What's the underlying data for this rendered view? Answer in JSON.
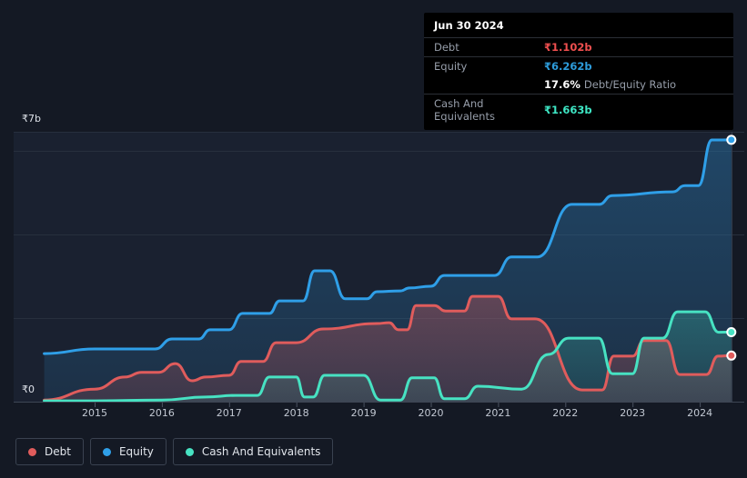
{
  "tooltip": {
    "date": "Jun 30 2024",
    "debt_label": "Debt",
    "debt_value": "₹1.102b",
    "equity_label": "Equity",
    "equity_value": "₹6.262b",
    "ratio_percent": "17.6%",
    "ratio_label": "Debt/Equity Ratio",
    "cash_label": "Cash And Equivalents",
    "cash_value": "₹1.663b"
  },
  "y_axis": {
    "max_label": "₹7b",
    "min_label": "₹0"
  },
  "x_axis": {
    "years": [
      "2015",
      "2016",
      "2017",
      "2018",
      "2019",
      "2020",
      "2021",
      "2022",
      "2023",
      "2024"
    ]
  },
  "legend": {
    "items": [
      {
        "label": "Debt",
        "color": "#e05c5c"
      },
      {
        "label": "Equity",
        "color": "#2f9fe8"
      },
      {
        "label": "Cash And Equivalents",
        "color": "#47e2c2"
      }
    ]
  },
  "colors": {
    "background": "#141924",
    "plot_background": "#1a2130",
    "gridline": "#272f3d",
    "axis_line": "#3e4654",
    "debt": "#e05c5c",
    "equity": "#2f9fe8",
    "cash": "#47e2c2"
  },
  "chart_data": {
    "type": "area",
    "title": "Debt, Equity and Cash history (₹ billions)",
    "x_range": [
      2014.25,
      2024.47
    ],
    "ylim": [
      0,
      7
    ],
    "grid_values": [
      2,
      4,
      6
    ],
    "x_tick_years": [
      2015,
      2016,
      2017,
      2018,
      2019,
      2020,
      2021,
      2022,
      2023,
      2024
    ],
    "legend_position": "bottom-left",
    "latest_point_date": "Jun 30 2024",
    "series": [
      {
        "name": "Equity",
        "color": "#2f9fe8",
        "points": [
          [
            2014.25,
            1.15
          ],
          [
            2015.0,
            1.26
          ],
          [
            2015.9,
            1.26
          ],
          [
            2016.15,
            1.5
          ],
          [
            2016.55,
            1.5
          ],
          [
            2016.72,
            1.72
          ],
          [
            2017.0,
            1.72
          ],
          [
            2017.2,
            2.11
          ],
          [
            2017.6,
            2.11
          ],
          [
            2017.75,
            2.41
          ],
          [
            2018.1,
            2.41
          ],
          [
            2018.27,
            3.13
          ],
          [
            2018.5,
            3.13
          ],
          [
            2018.73,
            2.46
          ],
          [
            2019.05,
            2.46
          ],
          [
            2019.2,
            2.63
          ],
          [
            2019.55,
            2.65
          ],
          [
            2019.68,
            2.72
          ],
          [
            2020.0,
            2.76
          ],
          [
            2020.2,
            3.02
          ],
          [
            2020.95,
            3.02
          ],
          [
            2021.2,
            3.46
          ],
          [
            2021.58,
            3.46
          ],
          [
            2022.1,
            4.72
          ],
          [
            2022.5,
            4.72
          ],
          [
            2022.7,
            4.93
          ],
          [
            2023.6,
            5.02
          ],
          [
            2023.78,
            5.17
          ],
          [
            2023.98,
            5.17
          ],
          [
            2024.18,
            6.26
          ],
          [
            2024.47,
            6.262
          ]
        ]
      },
      {
        "name": "Debt",
        "color": "#e05c5c",
        "points": [
          [
            2014.25,
            0.04
          ],
          [
            2015.0,
            0.3
          ],
          [
            2015.45,
            0.59
          ],
          [
            2015.7,
            0.7
          ],
          [
            2015.95,
            0.7
          ],
          [
            2016.2,
            0.91
          ],
          [
            2016.45,
            0.5
          ],
          [
            2016.65,
            0.59
          ],
          [
            2017.0,
            0.63
          ],
          [
            2017.18,
            0.96
          ],
          [
            2017.5,
            0.96
          ],
          [
            2017.7,
            1.41
          ],
          [
            2018.0,
            1.41
          ],
          [
            2018.4,
            1.74
          ],
          [
            2019.2,
            1.87
          ],
          [
            2019.38,
            1.89
          ],
          [
            2019.52,
            1.72
          ],
          [
            2019.65,
            1.72
          ],
          [
            2019.78,
            2.3
          ],
          [
            2020.05,
            2.3
          ],
          [
            2020.22,
            2.17
          ],
          [
            2020.5,
            2.17
          ],
          [
            2020.62,
            2.52
          ],
          [
            2021.0,
            2.52
          ],
          [
            2021.2,
            1.98
          ],
          [
            2021.55,
            1.98
          ],
          [
            2022.25,
            0.28
          ],
          [
            2022.55,
            0.28
          ],
          [
            2022.72,
            1.09
          ],
          [
            2023.0,
            1.09
          ],
          [
            2023.17,
            1.46
          ],
          [
            2023.5,
            1.46
          ],
          [
            2023.7,
            0.65
          ],
          [
            2024.1,
            0.65
          ],
          [
            2024.27,
            1.09
          ],
          [
            2024.47,
            1.102
          ]
        ]
      },
      {
        "name": "Cash And Equivalents",
        "color": "#47e2c2",
        "points": [
          [
            2014.25,
            0.02
          ],
          [
            2015.0,
            0.02
          ],
          [
            2016.0,
            0.04
          ],
          [
            2016.65,
            0.11
          ],
          [
            2017.1,
            0.15
          ],
          [
            2017.42,
            0.15
          ],
          [
            2017.6,
            0.59
          ],
          [
            2018.0,
            0.59
          ],
          [
            2018.12,
            0.11
          ],
          [
            2018.25,
            0.11
          ],
          [
            2018.42,
            0.63
          ],
          [
            2019.0,
            0.63
          ],
          [
            2019.25,
            0.04
          ],
          [
            2019.55,
            0.04
          ],
          [
            2019.72,
            0.57
          ],
          [
            2020.05,
            0.57
          ],
          [
            2020.2,
            0.07
          ],
          [
            2020.5,
            0.07
          ],
          [
            2020.7,
            0.37
          ],
          [
            2021.35,
            0.3
          ],
          [
            2021.75,
            1.13
          ],
          [
            2022.05,
            1.52
          ],
          [
            2022.5,
            1.52
          ],
          [
            2022.7,
            0.67
          ],
          [
            2023.0,
            0.67
          ],
          [
            2023.17,
            1.52
          ],
          [
            2023.45,
            1.52
          ],
          [
            2023.67,
            2.15
          ],
          [
            2024.08,
            2.15
          ],
          [
            2024.28,
            1.66
          ],
          [
            2024.47,
            1.663
          ]
        ]
      }
    ]
  }
}
